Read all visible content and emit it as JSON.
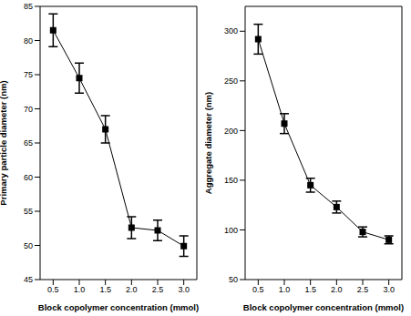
{
  "chart_data": [
    {
      "type": "line",
      "x_label": "Block copolymer concentration (mmol)",
      "y_label": "Primary particle diameter (nm)",
      "x": [
        0.5,
        1,
        1.5,
        2,
        2.5,
        3
      ],
      "xlim": [
        0.25,
        3.25
      ],
      "xticks": [
        0.5,
        {
          "value": 1,
          "label": "1.0"
        },
        1.5,
        {
          "value": 2,
          "label": "2.0"
        },
        2.5,
        {
          "value": 3,
          "label": "3.0"
        }
      ],
      "ylim": [
        45,
        85
      ],
      "yticks": [
        45,
        50,
        55,
        60,
        65,
        70,
        75,
        80,
        85
      ],
      "grid": false,
      "series": [
        {
          "name": "Primary particle diameter",
          "color": "#000000",
          "marker": "square",
          "values": [
            81.5,
            74.5,
            67.0,
            52.6,
            52.2,
            49.9
          ],
          "errors": [
            2.4,
            2.2,
            2.0,
            1.6,
            1.5,
            1.5
          ]
        }
      ]
    },
    {
      "type": "line",
      "x_label": "Block copolymer concentration (mmol)",
      "y_label": "Aggregate diameter (nm)",
      "x": [
        0.5,
        1,
        1.5,
        2,
        2.5,
        3
      ],
      "xlim": [
        0.25,
        3.25
      ],
      "xticks": [
        0.5,
        {
          "value": 1,
          "label": "1.0"
        },
        1.5,
        {
          "value": 2,
          "label": "2.0"
        },
        2.5,
        {
          "value": 3,
          "label": "3.0"
        }
      ],
      "ylim": [
        50,
        325
      ],
      "yticks": [
        50,
        100,
        150,
        200,
        250,
        300
      ],
      "grid": false,
      "series": [
        {
          "name": "Aggregate diameter",
          "color": "#000000",
          "marker": "square",
          "values": [
            292,
            207,
            145,
            123,
            98,
            90
          ],
          "errors": [
            15,
            10,
            7,
            6,
            5,
            4
          ]
        }
      ]
    }
  ]
}
